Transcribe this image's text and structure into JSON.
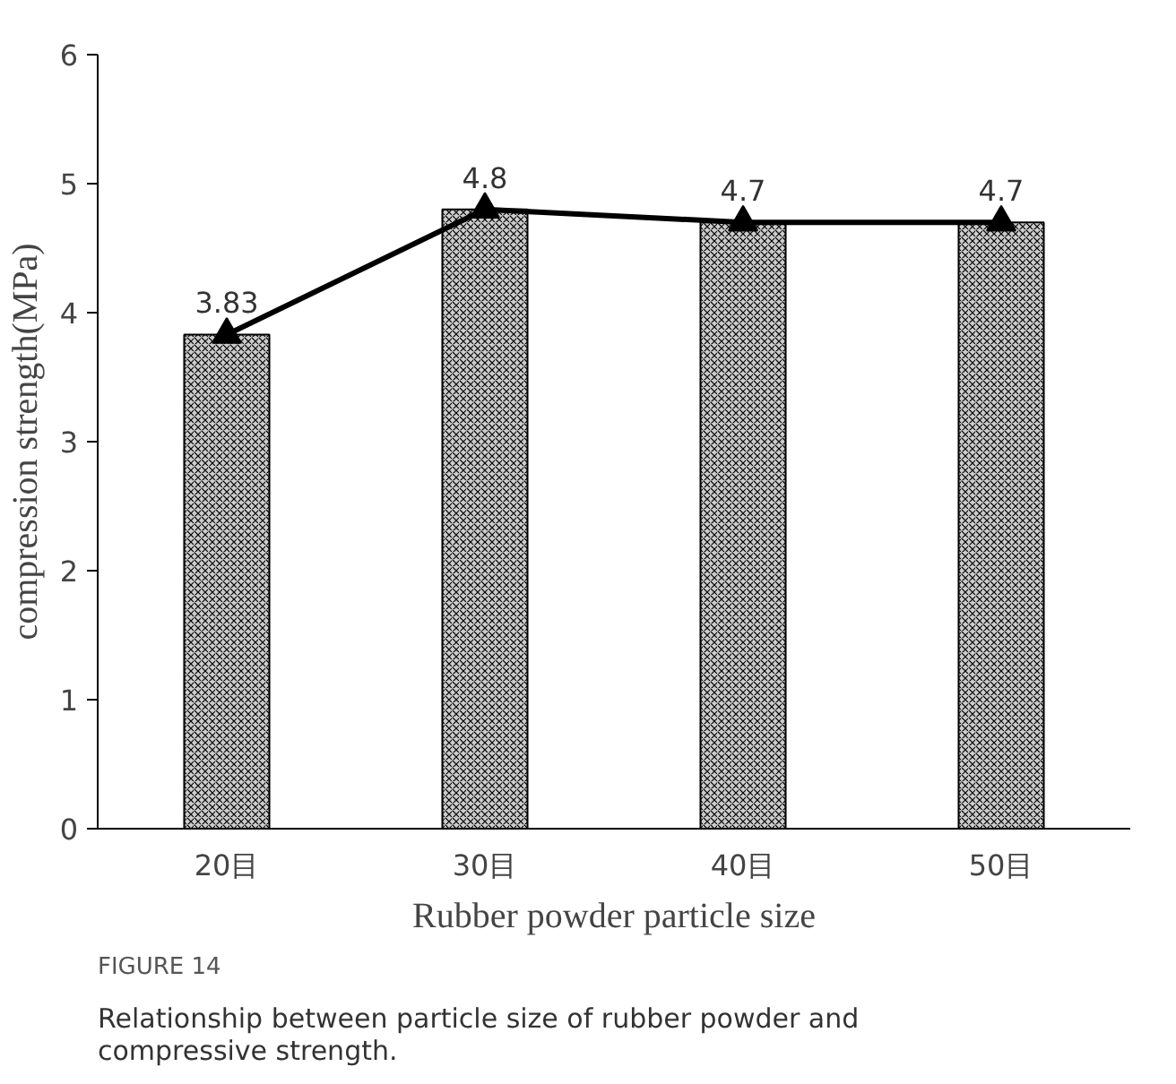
{
  "chart_data": {
    "type": "bar",
    "xlabel": "Rubber powder particle size",
    "ylabel": "compression strength(MPa)",
    "categories": [
      "20目",
      "30目",
      "40目",
      "50目"
    ],
    "series": [
      {
        "color": "#cccccc",
        "values": [
          3.83,
          4.8,
          4.7,
          4.7
        ]
      },
      {
        "type": "line",
        "color": "#000000",
        "values": [
          3.83,
          4.8,
          4.7,
          4.7
        ],
        "value_labels": [
          "3.83",
          "4.8",
          "4.7",
          "4.7"
        ]
      }
    ],
    "ylim": [
      0,
      6
    ],
    "yticks": [
      0,
      1,
      2,
      3,
      4,
      5,
      6
    ],
    "grid": false,
    "marker": "triangle",
    "line_style": "solid",
    "annotations": [
      "FIGURE 14",
      "Relationship between particle size of rubber powder and compressive strength."
    ]
  }
}
